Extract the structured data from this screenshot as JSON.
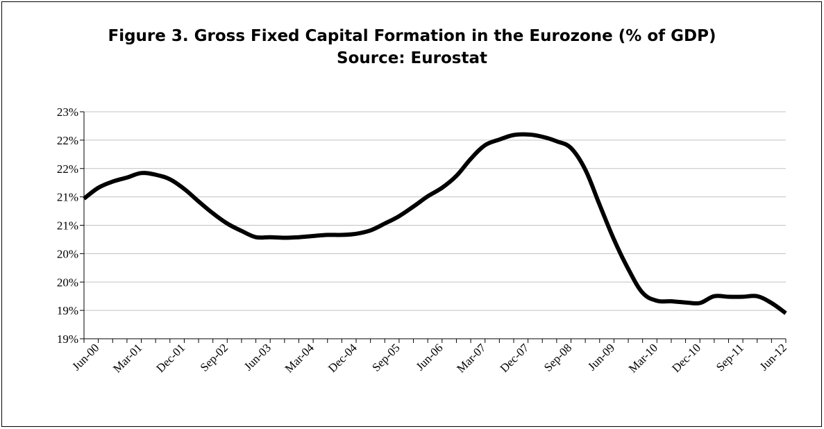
{
  "chart_data": {
    "type": "line",
    "title": "Figure 3. Gross Fixed Capital Formation in the Eurozone (% of GDP)",
    "subtitle": "Source: Eurostat",
    "xlabel": "",
    "ylabel": "",
    "ylim": [
      18.5,
      22.5
    ],
    "grid": true,
    "y_ticks": [
      {
        "value": 18.5,
        "label": "19%"
      },
      {
        "value": 19.0,
        "label": "19%"
      },
      {
        "value": 19.5,
        "label": "20%"
      },
      {
        "value": 20.0,
        "label": "20%"
      },
      {
        "value": 20.5,
        "label": "21%"
      },
      {
        "value": 21.0,
        "label": "21%"
      },
      {
        "value": 21.5,
        "label": "22%"
      },
      {
        "value": 22.0,
        "label": "22%"
      },
      {
        "value": 22.5,
        "label": "23%"
      }
    ],
    "x_tick_labels": [
      "Jun-00",
      "Mar-01",
      "Dec-01",
      "Sep-02",
      "Jun-03",
      "Mar-04",
      "Dec-04",
      "Sep-05",
      "Jun-06",
      "Mar-07",
      "Dec-07",
      "Sep-08",
      "Jun-09",
      "Mar-10",
      "Dec-10",
      "Sep-11",
      "Jun-12"
    ],
    "x": [
      "Mar-00",
      "Jun-00",
      "Sep-00",
      "Dec-00",
      "Mar-01",
      "Jun-01",
      "Sep-01",
      "Dec-01",
      "Mar-02",
      "Jun-02",
      "Sep-02",
      "Dec-02",
      "Mar-03",
      "Jun-03",
      "Sep-03",
      "Dec-03",
      "Mar-04",
      "Jun-04",
      "Sep-04",
      "Dec-04",
      "Mar-05",
      "Jun-05",
      "Sep-05",
      "Dec-05",
      "Mar-06",
      "Jun-06",
      "Sep-06",
      "Dec-06",
      "Mar-07",
      "Jun-07",
      "Sep-07",
      "Dec-07",
      "Mar-08",
      "Jun-08",
      "Sep-08",
      "Dec-08",
      "Mar-09",
      "Jun-09",
      "Sep-09",
      "Dec-09",
      "Mar-10",
      "Jun-10",
      "Sep-10",
      "Dec-10",
      "Mar-11",
      "Jun-11",
      "Sep-11",
      "Dec-11",
      "Mar-12",
      "Jun-12"
    ],
    "series": [
      {
        "name": "",
        "color": "#000000",
        "values": [
          20.97,
          21.16,
          21.27,
          21.34,
          21.42,
          21.39,
          21.31,
          21.14,
          20.92,
          20.71,
          20.53,
          20.4,
          20.29,
          20.29,
          20.28,
          20.29,
          20.31,
          20.33,
          20.33,
          20.35,
          20.41,
          20.53,
          20.66,
          20.83,
          21.01,
          21.16,
          21.37,
          21.67,
          21.91,
          22.01,
          22.09,
          22.1,
          22.06,
          21.98,
          21.86,
          21.48,
          20.86,
          20.25,
          19.73,
          19.31,
          19.17,
          19.16,
          19.14,
          19.13,
          19.25,
          19.24,
          19.24,
          19.25,
          19.13,
          18.95
        ]
      }
    ]
  }
}
